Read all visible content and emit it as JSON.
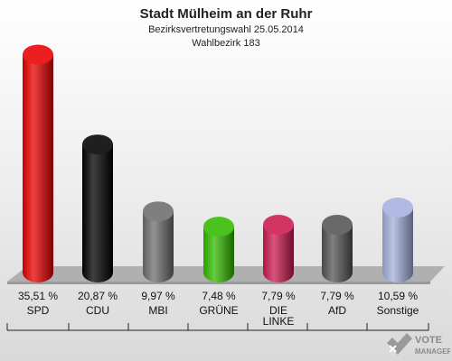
{
  "chart_data": {
    "type": "bar",
    "title": "Stadt Mülheim an der Ruhr",
    "subtitle": "Bezirksvertretungswahl 25.05.2014",
    "subtitle2": "Wahlbezirk 183",
    "categories": [
      "SPD",
      "CDU",
      "MBI",
      "GRÜNE",
      "DIE LINKE",
      "AfD",
      "Sonstige"
    ],
    "values": [
      35.51,
      20.87,
      9.97,
      7.48,
      7.79,
      7.79,
      10.59
    ],
    "value_labels": [
      "35,51 %",
      "20,87 %",
      "9,97 %",
      "7,48 %",
      "7,79 %",
      "7,79 %",
      "10,59 %"
    ],
    "colors": [
      "#e80000",
      "#000000",
      "#6e6e6e",
      "#33bb00",
      "#cc1a4f",
      "#555555",
      "#a4b0dd"
    ],
    "grid": false,
    "legend": "none"
  },
  "logo": {
    "text_top": "VOTE",
    "text_bottom": "MANAGER"
  }
}
